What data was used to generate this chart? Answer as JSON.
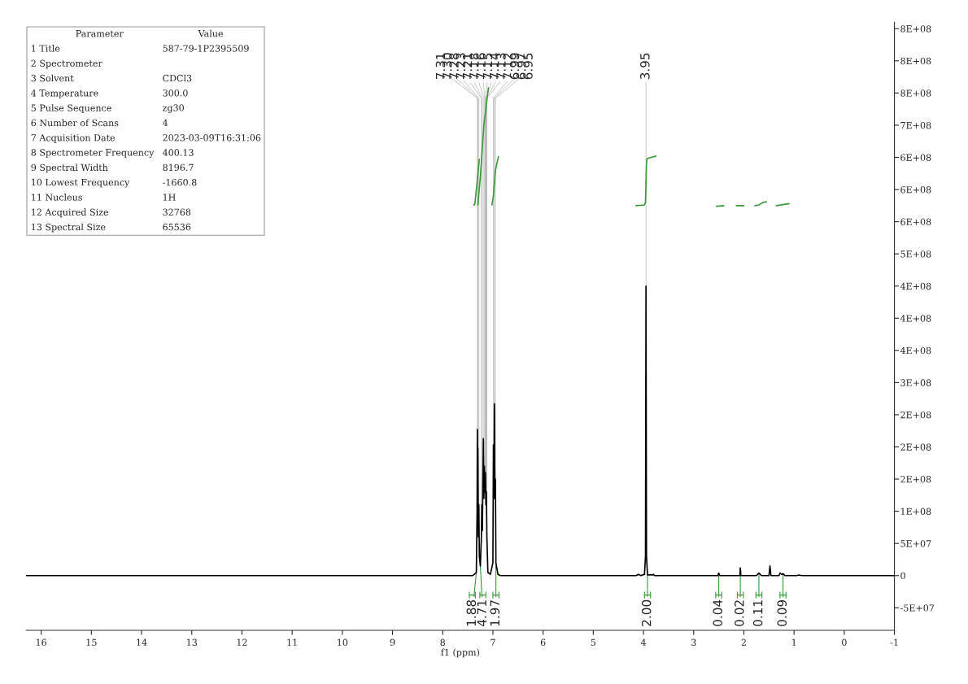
{
  "chart_data": {
    "type": "line",
    "xlabel": "f1 (ppm)",
    "xlim": [
      16.3,
      -1
    ],
    "xticks": [
      16,
      15,
      14,
      13,
      12,
      11,
      10,
      9,
      8,
      7,
      6,
      5,
      4,
      3,
      2,
      1,
      0,
      -1
    ],
    "ylim": [
      -85000000,
      860000000
    ],
    "yticks": [
      {
        "value": -50000000,
        "label": "-5E+07"
      },
      0,
      {
        "value": 50000000,
        "label": "5E+07"
      },
      {
        "value": 100000000,
        "label": "1E+08"
      },
      {
        "value": 150000000,
        "label": "2E+08"
      },
      {
        "value": 200000000,
        "label": "2E+08"
      },
      {
        "value": 250000000,
        "label": "2E+08"
      },
      {
        "value": 300000000,
        "label": "3E+08"
      },
      {
        "value": 350000000,
        "label": "4E+08"
      },
      {
        "value": 400000000,
        "label": "4E+08"
      },
      {
        "value": 450000000,
        "label": "4E+08"
      },
      {
        "value": 500000000,
        "label": "5E+08"
      },
      {
        "value": 550000000,
        "label": "6E+08"
      },
      {
        "value": 600000000,
        "label": "6E+08"
      },
      {
        "value": 650000000,
        "label": "6E+08"
      },
      {
        "value": 700000000,
        "label": "7E+08"
      },
      {
        "value": 750000000,
        "label": "8E+08"
      },
      {
        "value": 800000000,
        "label": "8E+08"
      },
      {
        "value": 850000000,
        "label": "8E+08"
      }
    ],
    "grid": false,
    "legend": false,
    "marker": "none",
    "line_style": "solid",
    "series": [
      {
        "color": "#000000",
        "x": [
          16.3,
          7.4,
          7.33,
          7.315,
          7.31,
          7.305,
          7.3,
          7.29,
          7.28,
          7.27,
          7.25,
          7.23,
          7.22,
          7.21,
          7.19,
          7.18,
          7.17,
          7.16,
          7.15,
          7.14,
          7.13,
          7.12,
          7.1,
          7.05,
          7.0,
          6.99,
          6.98,
          6.97,
          6.96,
          6.95,
          6.94,
          6.9,
          6.85,
          4.15,
          4.1,
          4.05,
          3.98,
          3.96,
          3.95,
          3.94,
          3.92,
          3.82,
          3.8,
          3.78,
          2.52,
          2.5,
          2.48,
          2.08,
          2.07,
          2.06,
          1.75,
          1.7,
          1.65,
          1.5,
          1.48,
          1.46,
          1.3,
          1.28,
          1.25,
          1.22,
          1.18,
          0.95,
          0.9,
          0.85,
          -1
        ],
        "values": [
          0,
          0,
          5000000,
          100000000,
          227000000,
          120000000,
          198000000,
          60000000,
          110000000,
          30000000,
          15000000,
          60000000,
          110000000,
          70000000,
          213000000,
          120000000,
          170000000,
          130000000,
          160000000,
          110000000,
          130000000,
          60000000,
          5000000,
          2000000,
          20000000,
          203000000,
          120000000,
          267000000,
          120000000,
          150000000,
          20000000,
          2000000,
          0,
          0,
          2000000,
          0,
          2000000,
          30000000,
          450000000,
          30000000,
          1000000,
          1000000,
          2000000,
          0,
          0,
          4000000,
          0,
          0,
          12000000,
          0,
          0,
          4000000,
          0,
          0,
          15000000,
          0,
          0,
          4000000,
          2000000,
          3000000,
          0,
          0,
          1000000,
          0,
          0
        ]
      },
      {
        "color": "#3a9a3a",
        "x": [
          7.38,
          7.36,
          7.33,
          7.27
        ],
        "values": [
          576000000,
          577000000,
          600000000,
          647000000
        ]
      },
      {
        "color": "#3a9a3a",
        "x": [
          7.3,
          7.25,
          7.18,
          7.09
        ],
        "values": [
          576000000,
          620000000,
          700000000,
          758000000
        ]
      },
      {
        "color": "#3a9a3a",
        "x": [
          7.02,
          6.99,
          6.95,
          6.89
        ],
        "values": [
          576000000,
          590000000,
          630000000,
          651000000
        ]
      },
      {
        "color": "#3a9a3a",
        "x": [
          4.15,
          3.98,
          3.96,
          3.95,
          3.94,
          3.93,
          3.75
        ],
        "values": [
          575000000,
          576000000,
          580000000,
          610000000,
          640000000,
          648000000,
          652000000
        ]
      },
      {
        "color": "#3a9a3a",
        "x": [
          2.55,
          2.4
        ],
        "values": [
          574000000,
          575000000
        ]
      },
      {
        "color": "#3a9a3a",
        "x": [
          2.15,
          2.0
        ],
        "values": [
          575000000,
          575000000
        ]
      },
      {
        "color": "#3a9a3a",
        "x": [
          1.78,
          1.7,
          1.62,
          1.55
        ],
        "values": [
          575000000,
          576000000,
          580000000,
          581000000
        ]
      },
      {
        "color": "#3a9a3a",
        "x": [
          1.35,
          1.1
        ],
        "values": [
          575000000,
          578000000
        ]
      }
    ],
    "annotations": [
      {
        "text": "7.31",
        "x": 7.31,
        "y": 227000000
      },
      {
        "text": "7.30",
        "x": 7.3,
        "y": 198000000
      },
      {
        "text": "7.28",
        "x": 7.28,
        "y": 110000000
      },
      {
        "text": "7.23",
        "x": 7.23,
        "y": 60000000
      },
      {
        "text": "7.21",
        "x": 7.21,
        "y": 70000000
      },
      {
        "text": "7.18",
        "x": 7.18,
        "y": 120000000
      },
      {
        "text": "7.16",
        "x": 7.16,
        "y": 130000000
      },
      {
        "text": "7.15",
        "x": 7.15,
        "y": 160000000
      },
      {
        "text": "7.14",
        "x": 7.14,
        "y": 110000000
      },
      {
        "text": "7.13",
        "x": 7.13,
        "y": 130000000
      },
      {
        "text": "7.12",
        "x": 7.12,
        "y": 60000000
      },
      {
        "text": "6.99",
        "x": 6.99,
        "y": 203000000
      },
      {
        "text": "6.97",
        "x": 6.97,
        "y": 267000000
      },
      {
        "text": "6.95",
        "x": 6.95,
        "y": 150000000
      },
      {
        "text": "3.95",
        "x": 3.95,
        "y": 450000000
      },
      {
        "text": "1.88",
        "x": 7.33,
        "y": 5000000
      },
      {
        "text": "4.71",
        "x": 7.25,
        "y": 15000000
      },
      {
        "text": "1.97",
        "x": 6.94,
        "y": 20000000
      },
      {
        "text": "2.00",
        "x": 3.92,
        "y": 1000000
      },
      {
        "text": "0.04",
        "x": 2.5,
        "y": 4000000
      },
      {
        "text": "0.02",
        "x": 2.07,
        "y": 12000000
      },
      {
        "text": "0.11",
        "x": 1.7,
        "y": 4000000
      },
      {
        "text": "0.09",
        "x": 1.22,
        "y": 3000000
      },
      "Parameter\tValue",
      "1 Title\t587-79-1P2395509",
      "2 Spectrometer",
      "3 Solvent\tCDCl3",
      "4 Temperature\t300.0",
      "5 Pulse Sequence\tzg30",
      "6 Number of Scans\t4",
      "7 Acquisition Date\t2023-03-09T16:31:06",
      "8 Spectrometer Frequency\t400.13",
      "9 Spectral Width\t8196.7",
      "10 Lowest Frequency\t-1660.8",
      "11 Nucleus\t1H",
      "12 Acquired Size\t32768",
      "13 Spectral Size\t65536"
    ]
  }
}
